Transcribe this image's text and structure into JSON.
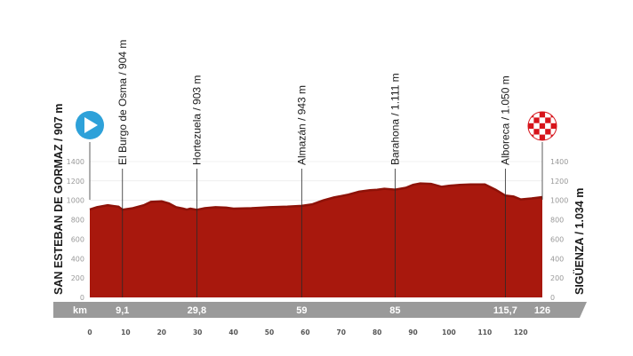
{
  "chart_data": {
    "type": "area",
    "start_label": "SAN ESTEBAN DE GORMAZ / 907 m",
    "finish_label": "SIGÜENZA / 1.034 m",
    "ylim": [
      0,
      1400
    ],
    "y_ticks": [
      0,
      200,
      400,
      600,
      800,
      1000,
      1200,
      1400
    ],
    "xlim": [
      0,
      126
    ],
    "x_ticks": [
      0,
      10,
      20,
      30,
      40,
      50,
      60,
      70,
      80,
      90,
      100,
      110,
      120
    ],
    "distance_unit": "km",
    "waypoints": [
      {
        "name": "El Burgo de Osma / 904 m",
        "km": 9.1,
        "km_label": "9,1"
      },
      {
        "name": "Hortezuela / 903 m",
        "km": 29.8,
        "km_label": "29,8"
      },
      {
        "name": "Almazán / 943 m",
        "km": 59,
        "km_label": "59"
      },
      {
        "name": "Barahona / 1.111 m",
        "km": 85,
        "km_label": "85"
      },
      {
        "name": "Alboreca / 1.050 m",
        "km": 115.7,
        "km_label": "115,7"
      }
    ],
    "finish_km_label": "126",
    "profile": {
      "km": [
        0,
        2,
        5,
        8,
        9.1,
        12,
        15,
        17,
        20,
        22,
        24,
        26,
        27,
        28,
        29.8,
        32,
        35,
        38,
        40,
        45,
        48,
        50,
        55,
        59,
        62,
        65,
        68,
        70,
        72,
        75,
        78,
        80,
        82,
        85,
        88,
        90,
        92,
        95,
        98,
        100,
        103,
        106,
        110,
        113,
        115.7,
        118,
        120,
        123,
        126
      ],
      "elevation": [
        907,
        930,
        950,
        935,
        904,
        920,
        950,
        985,
        990,
        970,
        930,
        915,
        905,
        915,
        903,
        920,
        930,
        925,
        915,
        920,
        925,
        930,
        935,
        943,
        960,
        1000,
        1030,
        1045,
        1060,
        1090,
        1105,
        1110,
        1120,
        1111,
        1130,
        1160,
        1175,
        1170,
        1140,
        1150,
        1160,
        1165,
        1165,
        1110,
        1050,
        1040,
        1010,
        1020,
        1034
      ]
    },
    "colors": {
      "fill": "#a8180d",
      "fill_dark": "#8e1208",
      "band": "#9a9a9a",
      "start_icon": "#2ea1d9",
      "finish_icon": "#d7141b"
    }
  }
}
